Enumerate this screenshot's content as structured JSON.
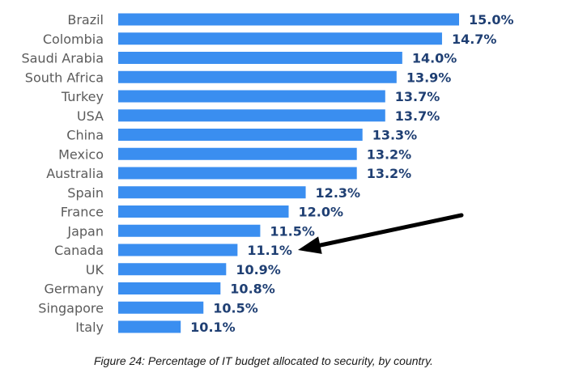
{
  "chart_data": {
    "type": "bar",
    "orientation": "horizontal",
    "categories": [
      "Brazil",
      "Colombia",
      "Saudi Arabia",
      "South Africa",
      "Turkey",
      "USA",
      "China",
      "Mexico",
      "Australia",
      "Spain",
      "France",
      "Japan",
      "Canada",
      "UK",
      "Germany",
      "Singapore",
      "Italy"
    ],
    "values": [
      15.0,
      14.7,
      14.0,
      13.9,
      13.7,
      13.7,
      13.3,
      13.2,
      13.2,
      12.3,
      12.0,
      11.5,
      11.1,
      10.9,
      10.8,
      10.5,
      10.1
    ],
    "value_labels": [
      "15.0%",
      "14.7%",
      "14.0%",
      "13.9%",
      "13.7%",
      "13.7%",
      "13.3%",
      "13.2%",
      "13.2%",
      "12.3%",
      "12.0%",
      "11.5%",
      "11.1%",
      "10.9%",
      "10.8%",
      "10.5%",
      "10.1%"
    ],
    "xlim": [
      9.0,
      15.0
    ],
    "bar_color": "#3a8ef0",
    "value_label_color": "#1f3f73",
    "category_label_color": "#5b5b5b",
    "grid": false,
    "legend": false,
    "annotation": {
      "type": "arrow",
      "points_to": "Canada",
      "color": "#000000"
    }
  },
  "caption": "Figure 24: Percentage of IT budget allocated to security, by country."
}
